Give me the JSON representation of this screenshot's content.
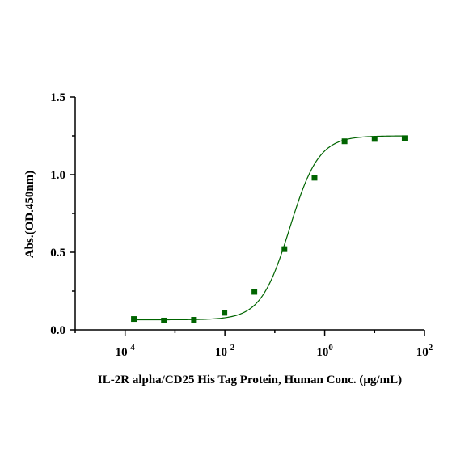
{
  "chart_data": {
    "type": "scatter",
    "xlabel": "IL-2R alpha/CD25 His Tag Protein, Human Conc. (μg/mL)",
    "ylabel": "Abs.(OD.450nm)",
    "x_scale": "log10",
    "xlim": [
      1e-05,
      100
    ],
    "ylim": [
      0,
      1.5
    ],
    "x_ticks": [
      {
        "exp": -4,
        "base": "10",
        "sup": "-4"
      },
      {
        "exp": -2,
        "base": "10",
        "sup": "-2"
      },
      {
        "exp": 0,
        "base": "10",
        "sup": "0"
      },
      {
        "exp": 2,
        "base": "10",
        "sup": "2"
      }
    ],
    "y_ticks": [
      {
        "value": 0.0,
        "label": "0.0"
      },
      {
        "value": 0.5,
        "label": "0.5"
      },
      {
        "value": 1.0,
        "label": "1.0"
      },
      {
        "value": 1.5,
        "label": "1.5"
      }
    ],
    "grid": false,
    "legend": "none",
    "color": "#006400",
    "series": [
      {
        "points": [
          {
            "x": 0.00015,
            "y": 0.07
          },
          {
            "x": 0.0006,
            "y": 0.06
          },
          {
            "x": 0.0024,
            "y": 0.065
          },
          {
            "x": 0.0098,
            "y": 0.11
          },
          {
            "x": 0.039,
            "y": 0.245
          },
          {
            "x": 0.156,
            "y": 0.52
          },
          {
            "x": 0.625,
            "y": 0.98
          },
          {
            "x": 2.5,
            "y": 1.215
          },
          {
            "x": 10,
            "y": 1.23
          },
          {
            "x": 40,
            "y": 1.235
          }
        ],
        "fit": {
          "model": "4PL",
          "bottom": 0.065,
          "top": 1.25,
          "ec50": 0.2,
          "hill": 1.5
        }
      }
    ]
  }
}
